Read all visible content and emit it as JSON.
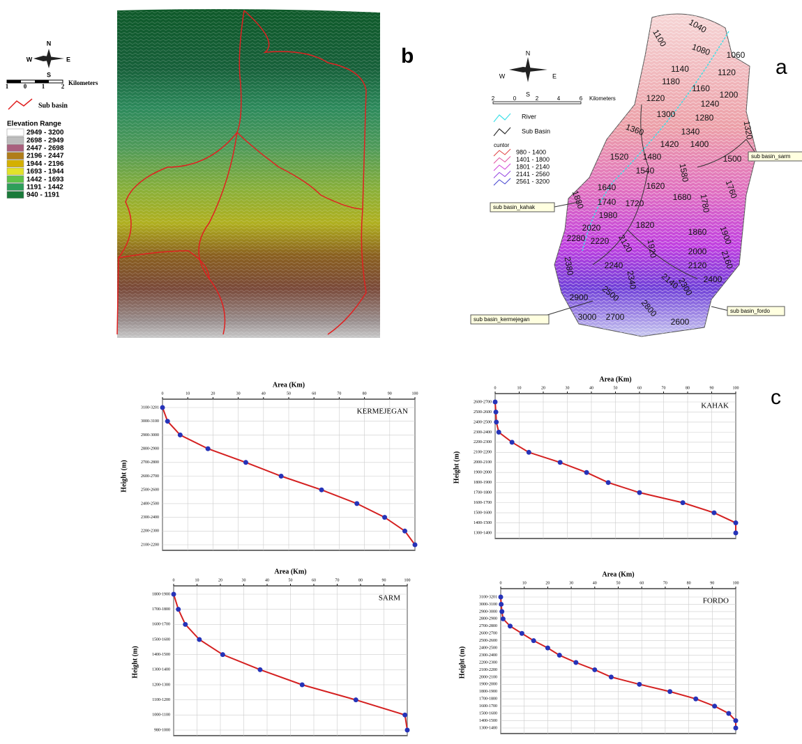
{
  "panel_labels": [
    "b",
    "a",
    "c"
  ],
  "map_b": {
    "compass": [
      "N",
      "E",
      "S",
      "W"
    ],
    "scale_labels": [
      "1",
      "0",
      "1",
      "2"
    ],
    "scale_unit": "Kilometers",
    "sub_basin": "Sub basin",
    "legend_title": "Elevation Range",
    "legend": [
      {
        "label": "2949 - 3200",
        "color": "#ffffff"
      },
      {
        "label": "2698 - 2949",
        "color": "#bdbdbd"
      },
      {
        "label": "2447 - 2698",
        "color": "#a9607e"
      },
      {
        "label": "2196 - 2447",
        "color": "#b07d1a"
      },
      {
        "label": "1944 - 2196",
        "color": "#d4b000"
      },
      {
        "label": "1693 - 1944",
        "color": "#e2e22a"
      },
      {
        "label": "1442 - 1693",
        "color": "#5fc34a"
      },
      {
        "label": "1191 - 1442",
        "color": "#2e9e5a"
      },
      {
        "label": "940 - 1191",
        "color": "#1a7a3a"
      }
    ]
  },
  "map_a": {
    "compass": [
      "N",
      "E",
      "S",
      "W"
    ],
    "scale_labels": [
      "2",
      "0",
      "2",
      "4",
      "6"
    ],
    "scale_unit": "Kilometers",
    "river": "River",
    "sub_basin": "Sub Basin",
    "contour_title": "cuntor",
    "contour_legend": [
      {
        "label": "980 - 1400",
        "color": "#e04040"
      },
      {
        "label": "1401 - 1800",
        "color": "#e050a0"
      },
      {
        "label": "1801 - 2140",
        "color": "#d040d8"
      },
      {
        "label": "2141 - 2560",
        "color": "#9040e0"
      },
      {
        "label": "2561 - 3200",
        "color": "#4040d0"
      }
    ],
    "callouts": [
      "sub basin_sarm",
      "sub basin_kahak",
      "sub basin_fordo",
      "sub basin_kermejegan"
    ],
    "contour_labels": [
      "1040",
      "1100",
      "1080",
      "1060",
      "1140",
      "1120",
      "1180",
      "1160",
      "1200",
      "1220",
      "1240",
      "1300",
      "1280",
      "1320",
      "1360",
      "1340",
      "1420",
      "1400",
      "1500",
      "1520",
      "1480",
      "1540",
      "1580",
      "1640",
      "1620",
      "1680",
      "1760",
      "1740",
      "1720",
      "1780",
      "1880",
      "1980",
      "1820",
      "1860",
      "1900",
      "2020",
      "2280",
      "2220",
      "2120",
      "1920",
      "2000",
      "2160",
      "2120",
      "2400",
      "2380",
      "2240",
      "2340",
      "2140",
      "2300",
      "2900",
      "2500",
      "2800",
      "2700",
      "3000",
      "2600"
    ]
  },
  "chart_data": [
    {
      "type": "line",
      "title": "KERMEJEGAN",
      "xlabel": "Area (Km)",
      "ylabel": "Height (m)",
      "categories": [
        "3100-3201",
        "3000-3100",
        "2900-3000",
        "2800-2900",
        "2700-2800",
        "2600-2700",
        "2500-2600",
        "2400-2500",
        "2300-2400",
        "2200-2300",
        "2100-2200"
      ],
      "values": [
        0,
        2,
        7,
        18,
        33,
        47,
        63,
        77,
        88,
        96,
        100
      ],
      "xlim": [
        0,
        100
      ],
      "xticks": [
        0,
        10,
        20,
        30,
        40,
        50,
        60,
        70,
        80,
        90,
        100
      ],
      "color": "#d42020",
      "marker_color": "#2633b8",
      "grid": true
    },
    {
      "type": "line",
      "title": "KAHAK",
      "xlabel": "Area (Km)",
      "ylabel": "Height (m)",
      "categories": [
        "2600-2700",
        "2500-2600",
        "2400-2500",
        "2300-2400",
        "2200-2300",
        "2100-2200",
        "2000-2100",
        "1900-2000",
        "1800-1900",
        "1700-1800",
        "1600-1700",
        "1500-1600",
        "1400-1500",
        "1300-1400"
      ],
      "values": [
        0,
        0.3,
        0.5,
        1.5,
        7,
        14,
        27,
        38,
        47,
        60,
        78,
        91,
        100,
        100
      ],
      "xlim": [
        0,
        100
      ],
      "xticks": [
        0,
        10,
        20,
        30,
        40,
        50,
        60,
        70,
        80,
        90,
        100
      ],
      "color": "#d42020",
      "marker_color": "#2633b8",
      "grid": true
    },
    {
      "type": "line",
      "title": "SARM",
      "xlabel": "Area (Km)",
      "ylabel": "Height (m)",
      "categories": [
        "1800-1900",
        "1700-1800",
        "1600-1700",
        "1500-1600",
        "1400-1500",
        "1300-1400",
        "1200-1300",
        "1100-1200",
        "1000-1100",
        "980-1000"
      ],
      "values": [
        0,
        2,
        5,
        11,
        21,
        37,
        55,
        78,
        99,
        100
      ],
      "xlim": [
        0,
        100
      ],
      "xticks": [
        0,
        10,
        20,
        30,
        40,
        50,
        60,
        70,
        80,
        90,
        100
      ],
      "color": "#d42020",
      "marker_color": "#2633b8",
      "grid": true
    },
    {
      "type": "line",
      "title": "FORDO",
      "xlabel": "Area (Km)",
      "ylabel": "Height (m)",
      "categories": [
        "3100-3201",
        "3000-3100",
        "2900-3000",
        "2800-2900",
        "2700-2800",
        "2600-2700",
        "2500-2600",
        "2400-2500",
        "2300-2400",
        "2200-2300",
        "2100-2200",
        "2000-2100",
        "1900-2000",
        "1800-1900",
        "1700-1800",
        "1600-1700",
        "1500-1600",
        "1400-1500",
        "1300-1400"
      ],
      "values": [
        0,
        0.2,
        0.5,
        1,
        4,
        9,
        14,
        20,
        25,
        32,
        40,
        47,
        59,
        72,
        83,
        91,
        97,
        100,
        100
      ],
      "xlim": [
        0,
        100
      ],
      "xticks": [
        0,
        10,
        20,
        30,
        40,
        50,
        60,
        70,
        80,
        90,
        100
      ],
      "color": "#d42020",
      "marker_color": "#2633b8",
      "grid": true
    }
  ]
}
